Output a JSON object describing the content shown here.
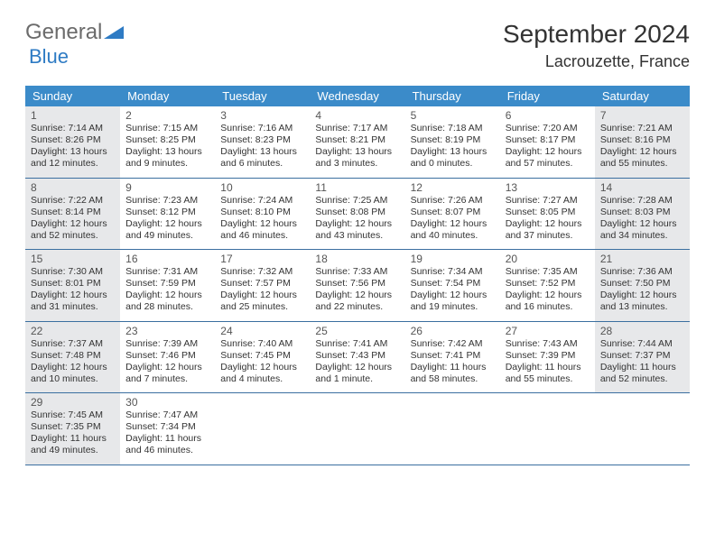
{
  "brand": {
    "general": "General",
    "blue": "Blue"
  },
  "title": "September 2024",
  "location": "Lacrouzette, France",
  "colors": {
    "header_bg": "#3b8bc9",
    "header_text": "#ffffff",
    "row_border": "#3b6fa0",
    "shaded_bg": "#e7e8ea",
    "logo_grey": "#6b6b6b",
    "logo_blue": "#2e7bc4"
  },
  "day_names": [
    "Sunday",
    "Monday",
    "Tuesday",
    "Wednesday",
    "Thursday",
    "Friday",
    "Saturday"
  ],
  "weeks": [
    [
      {
        "n": "1",
        "shaded": true,
        "sr": "Sunrise: 7:14 AM",
        "ss": "Sunset: 8:26 PM",
        "d1": "Daylight: 13 hours",
        "d2": "and 12 minutes."
      },
      {
        "n": "2",
        "shaded": false,
        "sr": "Sunrise: 7:15 AM",
        "ss": "Sunset: 8:25 PM",
        "d1": "Daylight: 13 hours",
        "d2": "and 9 minutes."
      },
      {
        "n": "3",
        "shaded": false,
        "sr": "Sunrise: 7:16 AM",
        "ss": "Sunset: 8:23 PM",
        "d1": "Daylight: 13 hours",
        "d2": "and 6 minutes."
      },
      {
        "n": "4",
        "shaded": false,
        "sr": "Sunrise: 7:17 AM",
        "ss": "Sunset: 8:21 PM",
        "d1": "Daylight: 13 hours",
        "d2": "and 3 minutes."
      },
      {
        "n": "5",
        "shaded": false,
        "sr": "Sunrise: 7:18 AM",
        "ss": "Sunset: 8:19 PM",
        "d1": "Daylight: 13 hours",
        "d2": "and 0 minutes."
      },
      {
        "n": "6",
        "shaded": false,
        "sr": "Sunrise: 7:20 AM",
        "ss": "Sunset: 8:17 PM",
        "d1": "Daylight: 12 hours",
        "d2": "and 57 minutes."
      },
      {
        "n": "7",
        "shaded": true,
        "sr": "Sunrise: 7:21 AM",
        "ss": "Sunset: 8:16 PM",
        "d1": "Daylight: 12 hours",
        "d2": "and 55 minutes."
      }
    ],
    [
      {
        "n": "8",
        "shaded": true,
        "sr": "Sunrise: 7:22 AM",
        "ss": "Sunset: 8:14 PM",
        "d1": "Daylight: 12 hours",
        "d2": "and 52 minutes."
      },
      {
        "n": "9",
        "shaded": false,
        "sr": "Sunrise: 7:23 AM",
        "ss": "Sunset: 8:12 PM",
        "d1": "Daylight: 12 hours",
        "d2": "and 49 minutes."
      },
      {
        "n": "10",
        "shaded": false,
        "sr": "Sunrise: 7:24 AM",
        "ss": "Sunset: 8:10 PM",
        "d1": "Daylight: 12 hours",
        "d2": "and 46 minutes."
      },
      {
        "n": "11",
        "shaded": false,
        "sr": "Sunrise: 7:25 AM",
        "ss": "Sunset: 8:08 PM",
        "d1": "Daylight: 12 hours",
        "d2": "and 43 minutes."
      },
      {
        "n": "12",
        "shaded": false,
        "sr": "Sunrise: 7:26 AM",
        "ss": "Sunset: 8:07 PM",
        "d1": "Daylight: 12 hours",
        "d2": "and 40 minutes."
      },
      {
        "n": "13",
        "shaded": false,
        "sr": "Sunrise: 7:27 AM",
        "ss": "Sunset: 8:05 PM",
        "d1": "Daylight: 12 hours",
        "d2": "and 37 minutes."
      },
      {
        "n": "14",
        "shaded": true,
        "sr": "Sunrise: 7:28 AM",
        "ss": "Sunset: 8:03 PM",
        "d1": "Daylight: 12 hours",
        "d2": "and 34 minutes."
      }
    ],
    [
      {
        "n": "15",
        "shaded": true,
        "sr": "Sunrise: 7:30 AM",
        "ss": "Sunset: 8:01 PM",
        "d1": "Daylight: 12 hours",
        "d2": "and 31 minutes."
      },
      {
        "n": "16",
        "shaded": false,
        "sr": "Sunrise: 7:31 AM",
        "ss": "Sunset: 7:59 PM",
        "d1": "Daylight: 12 hours",
        "d2": "and 28 minutes."
      },
      {
        "n": "17",
        "shaded": false,
        "sr": "Sunrise: 7:32 AM",
        "ss": "Sunset: 7:57 PM",
        "d1": "Daylight: 12 hours",
        "d2": "and 25 minutes."
      },
      {
        "n": "18",
        "shaded": false,
        "sr": "Sunrise: 7:33 AM",
        "ss": "Sunset: 7:56 PM",
        "d1": "Daylight: 12 hours",
        "d2": "and 22 minutes."
      },
      {
        "n": "19",
        "shaded": false,
        "sr": "Sunrise: 7:34 AM",
        "ss": "Sunset: 7:54 PM",
        "d1": "Daylight: 12 hours",
        "d2": "and 19 minutes."
      },
      {
        "n": "20",
        "shaded": false,
        "sr": "Sunrise: 7:35 AM",
        "ss": "Sunset: 7:52 PM",
        "d1": "Daylight: 12 hours",
        "d2": "and 16 minutes."
      },
      {
        "n": "21",
        "shaded": true,
        "sr": "Sunrise: 7:36 AM",
        "ss": "Sunset: 7:50 PM",
        "d1": "Daylight: 12 hours",
        "d2": "and 13 minutes."
      }
    ],
    [
      {
        "n": "22",
        "shaded": true,
        "sr": "Sunrise: 7:37 AM",
        "ss": "Sunset: 7:48 PM",
        "d1": "Daylight: 12 hours",
        "d2": "and 10 minutes."
      },
      {
        "n": "23",
        "shaded": false,
        "sr": "Sunrise: 7:39 AM",
        "ss": "Sunset: 7:46 PM",
        "d1": "Daylight: 12 hours",
        "d2": "and 7 minutes."
      },
      {
        "n": "24",
        "shaded": false,
        "sr": "Sunrise: 7:40 AM",
        "ss": "Sunset: 7:45 PM",
        "d1": "Daylight: 12 hours",
        "d2": "and 4 minutes."
      },
      {
        "n": "25",
        "shaded": false,
        "sr": "Sunrise: 7:41 AM",
        "ss": "Sunset: 7:43 PM",
        "d1": "Daylight: 12 hours",
        "d2": "and 1 minute."
      },
      {
        "n": "26",
        "shaded": false,
        "sr": "Sunrise: 7:42 AM",
        "ss": "Sunset: 7:41 PM",
        "d1": "Daylight: 11 hours",
        "d2": "and 58 minutes."
      },
      {
        "n": "27",
        "shaded": false,
        "sr": "Sunrise: 7:43 AM",
        "ss": "Sunset: 7:39 PM",
        "d1": "Daylight: 11 hours",
        "d2": "and 55 minutes."
      },
      {
        "n": "28",
        "shaded": true,
        "sr": "Sunrise: 7:44 AM",
        "ss": "Sunset: 7:37 PM",
        "d1": "Daylight: 11 hours",
        "d2": "and 52 minutes."
      }
    ],
    [
      {
        "n": "29",
        "shaded": true,
        "sr": "Sunrise: 7:45 AM",
        "ss": "Sunset: 7:35 PM",
        "d1": "Daylight: 11 hours",
        "d2": "and 49 minutes."
      },
      {
        "n": "30",
        "shaded": false,
        "sr": "Sunrise: 7:47 AM",
        "ss": "Sunset: 7:34 PM",
        "d1": "Daylight: 11 hours",
        "d2": "and 46 minutes."
      },
      {
        "empty": true
      },
      {
        "empty": true
      },
      {
        "empty": true
      },
      {
        "empty": true
      },
      {
        "empty": true
      }
    ]
  ]
}
